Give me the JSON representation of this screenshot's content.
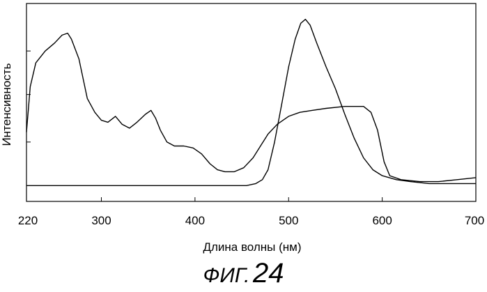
{
  "chart_data": {
    "type": "line",
    "title": "",
    "xlabel": "Длина волны (нм)",
    "ylabel": "Интенсивность",
    "xlim": [
      220,
      700
    ],
    "ylim": [
      0,
      1
    ],
    "x_ticks": [
      "220",
      "300",
      "400",
      "500",
      "600",
      "700"
    ],
    "grid": false,
    "series": [
      {
        "points": [
          [
            220,
            0.35
          ],
          [
            224,
            0.58
          ],
          [
            230,
            0.7
          ],
          [
            240,
            0.76
          ],
          [
            250,
            0.8
          ],
          [
            258,
            0.84
          ],
          [
            264,
            0.85
          ],
          [
            268,
            0.82
          ],
          [
            276,
            0.72
          ],
          [
            285,
            0.52
          ],
          [
            293,
            0.45
          ],
          [
            300,
            0.41
          ],
          [
            307,
            0.4
          ],
          [
            315,
            0.43
          ],
          [
            322,
            0.39
          ],
          [
            330,
            0.37
          ],
          [
            338,
            0.4
          ],
          [
            347,
            0.44
          ],
          [
            353,
            0.46
          ],
          [
            358,
            0.42
          ],
          [
            363,
            0.36
          ],
          [
            370,
            0.3
          ],
          [
            378,
            0.28
          ],
          [
            388,
            0.28
          ],
          [
            398,
            0.27
          ],
          [
            407,
            0.24
          ],
          [
            416,
            0.19
          ],
          [
            424,
            0.16
          ],
          [
            432,
            0.15
          ],
          [
            442,
            0.15
          ],
          [
            452,
            0.17
          ],
          [
            462,
            0.22
          ],
          [
            470,
            0.28
          ],
          [
            478,
            0.34
          ],
          [
            488,
            0.39
          ],
          [
            500,
            0.43
          ],
          [
            512,
            0.45
          ],
          [
            525,
            0.46
          ],
          [
            540,
            0.47
          ],
          [
            560,
            0.48
          ],
          [
            580,
            0.48
          ],
          [
            588,
            0.45
          ],
          [
            595,
            0.36
          ],
          [
            602,
            0.2
          ],
          [
            608,
            0.13
          ],
          [
            620,
            0.11
          ],
          [
            640,
            0.1
          ],
          [
            660,
            0.1
          ],
          [
            680,
            0.11
          ],
          [
            700,
            0.12
          ]
        ]
      },
      {
        "points": [
          [
            220,
            0.08
          ],
          [
            300,
            0.08
          ],
          [
            400,
            0.08
          ],
          [
            455,
            0.08
          ],
          [
            465,
            0.09
          ],
          [
            472,
            0.11
          ],
          [
            478,
            0.16
          ],
          [
            485,
            0.3
          ],
          [
            493,
            0.5
          ],
          [
            500,
            0.68
          ],
          [
            507,
            0.82
          ],
          [
            513,
            0.9
          ],
          [
            518,
            0.92
          ],
          [
            523,
            0.89
          ],
          [
            530,
            0.8
          ],
          [
            540,
            0.68
          ],
          [
            550,
            0.57
          ],
          [
            560,
            0.44
          ],
          [
            570,
            0.32
          ],
          [
            580,
            0.22
          ],
          [
            590,
            0.16
          ],
          [
            600,
            0.13
          ],
          [
            615,
            0.11
          ],
          [
            630,
            0.1
          ],
          [
            650,
            0.09
          ],
          [
            680,
            0.09
          ],
          [
            700,
            0.09
          ]
        ]
      }
    ]
  },
  "figure": {
    "prefix": "ФИГ.",
    "number": "24"
  }
}
